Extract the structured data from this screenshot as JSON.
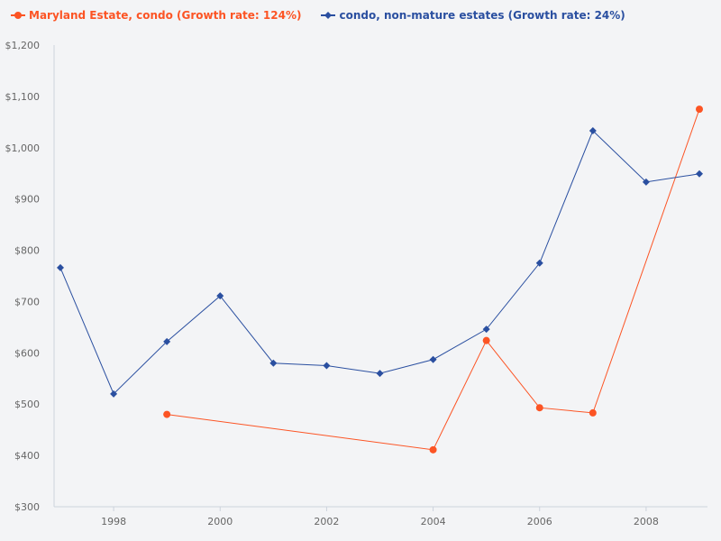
{
  "chart_data": {
    "type": "line",
    "title": "",
    "xlabel": "",
    "ylabel": "",
    "x": [
      1997,
      1998,
      1999,
      2000,
      2001,
      2002,
      2003,
      2004,
      2005,
      2006,
      2007,
      2008,
      2009
    ],
    "xlim": [
      1997,
      2009
    ],
    "ylim": [
      300,
      1200
    ],
    "x_ticks": [
      "1998",
      "2000",
      "2002",
      "2004",
      "2006",
      "2008"
    ],
    "y_ticks": [
      "$300",
      "$400",
      "$500",
      "$600",
      "$700",
      "$800",
      "$900",
      "$1,000",
      "$1,100",
      "$1,200"
    ],
    "grid": false,
    "legend_placement": "top-left",
    "series": [
      {
        "name": "Maryland Estate, condo (Growth rate: 124%)",
        "color": "#fc5424",
        "marker": "circle",
        "values": [
          null,
          null,
          480,
          null,
          null,
          null,
          null,
          411,
          624,
          493,
          483,
          null,
          1075
        ]
      },
      {
        "name": "condo, non-mature estates (Growth rate: 24%)",
        "color": "#2a4fa0",
        "marker": "diamond",
        "values": [
          766,
          520,
          622,
          711,
          580,
          575,
          560,
          587,
          646,
          775,
          1033,
          933,
          949
        ]
      }
    ]
  }
}
